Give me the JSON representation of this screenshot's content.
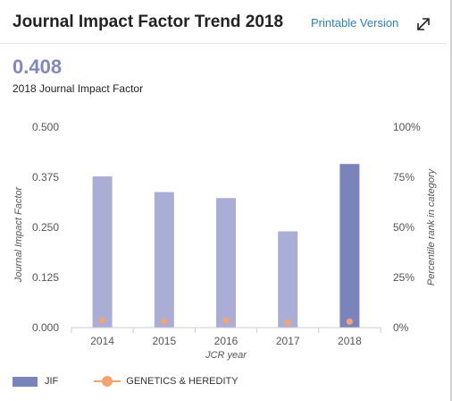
{
  "header": {
    "title": "Journal Impact Factor Trend 2018",
    "printable_label": "Printable Version",
    "expand_icon": "expand-arrows-icon"
  },
  "metric": {
    "value": "0.408",
    "label": "2018 Journal Impact Factor"
  },
  "colors": {
    "bar": "#aaaed6",
    "bar_highlight": "#7b83bb",
    "line": "#f5a26f",
    "metric": "#8088bf",
    "link": "#2a7fc1"
  },
  "legend": {
    "jif_label": "JIF",
    "category_label": "GENETICS & HEREDITY"
  },
  "chart_data": {
    "type": "bar",
    "categories": [
      "2014",
      "2015",
      "2016",
      "2017",
      "2018"
    ],
    "series": [
      {
        "name": "JIF",
        "values": [
          0.377,
          0.338,
          0.323,
          0.24,
          0.408
        ],
        "axis": "left"
      },
      {
        "name": "GENETICS & HEREDITY",
        "values": [
          3.5,
          3.0,
          3.5,
          2.5,
          3.0
        ],
        "axis": "right",
        "render": "points"
      }
    ],
    "xlabel": "JCR year",
    "ylabel": "Journal Impact Factor",
    "y2label": "Percentile rank in category",
    "ylim": [
      0,
      0.5
    ],
    "y2lim": [
      0,
      100
    ],
    "yticks": [
      "0.000",
      "0.125",
      "0.250",
      "0.375",
      "0.500"
    ],
    "y2ticks": [
      "0%",
      "25%",
      "50%",
      "75%",
      "100%"
    ],
    "grid": false,
    "legend_position": "bottom-left"
  }
}
